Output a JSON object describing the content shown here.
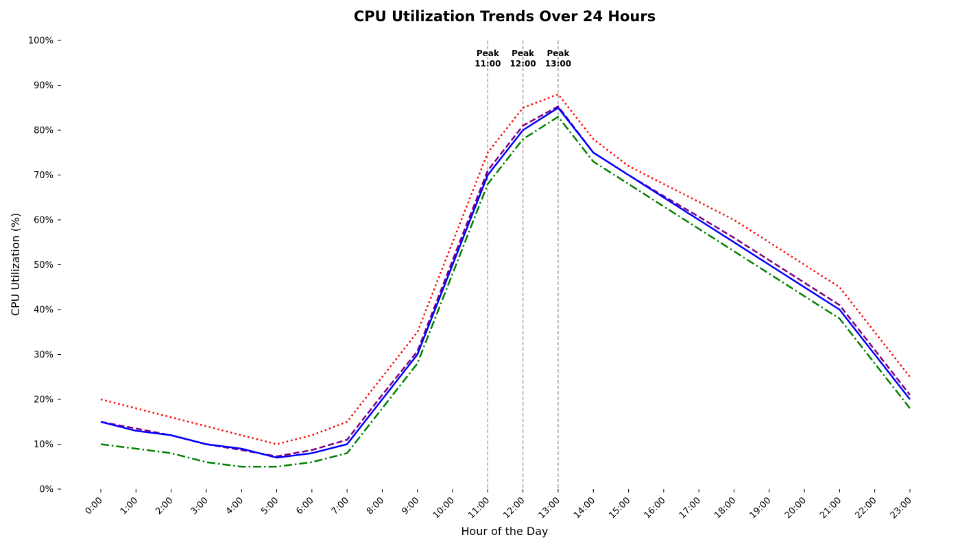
{
  "chart_data": {
    "type": "line",
    "title": "CPU Utilization Trends Over 24 Hours",
    "xlabel": "Hour of the Day",
    "ylabel": "CPU Utilization (%)",
    "ylim": [
      0,
      100
    ],
    "y_ticks": [
      0,
      10,
      20,
      30,
      40,
      50,
      60,
      70,
      80,
      90,
      100
    ],
    "y_tick_suffix": "%",
    "categories": [
      "0:00",
      "1:00",
      "2:00",
      "3:00",
      "4:00",
      "5:00",
      "6:00",
      "7:00",
      "8:00",
      "9:00",
      "10:00",
      "11:00",
      "12:00",
      "13:00",
      "14:00",
      "15:00",
      "16:00",
      "17:00",
      "18:00",
      "19:00",
      "20:00",
      "21:00",
      "22:00",
      "23:00"
    ],
    "grid": false,
    "legend": "none",
    "series": [
      {
        "color": "#ff0000",
        "style": "dotted",
        "values": [
          20,
          18,
          16,
          14,
          12,
          10,
          12,
          15,
          25,
          35,
          55,
          75,
          85,
          88,
          78,
          72,
          68,
          64,
          60,
          55,
          50,
          45,
          35,
          25
        ]
      },
      {
        "color": "#008000",
        "style": "dashdot",
        "values": [
          10,
          9,
          8,
          6,
          5,
          5,
          6,
          8,
          18,
          28,
          48,
          68,
          78,
          83,
          73,
          68,
          63,
          58,
          53,
          48,
          43,
          38,
          28,
          18
        ]
      },
      {
        "color": "#800080",
        "style": "dashed",
        "values": [
          15,
          13.5,
          12,
          10,
          8.7,
          7.3,
          8.7,
          11,
          21,
          30.7,
          51,
          71,
          81,
          85.3,
          75,
          70,
          65.3,
          60.7,
          56,
          51,
          46,
          41,
          31,
          21
        ]
      },
      {
        "color": "#0000ff",
        "style": "solid",
        "values": [
          15,
          13,
          12,
          10,
          9,
          7,
          8,
          10,
          20,
          30,
          50,
          70,
          80,
          85,
          75,
          70,
          65,
          60,
          55,
          50,
          45,
          40,
          30,
          20
        ]
      }
    ],
    "annotations": [
      {
        "x": "11:00",
        "line1": "Peak",
        "line2": "11:00"
      },
      {
        "x": "12:00",
        "line1": "Peak",
        "line2": "12:00"
      },
      {
        "x": "13:00",
        "line1": "Peak",
        "line2": "13:00"
      }
    ]
  }
}
